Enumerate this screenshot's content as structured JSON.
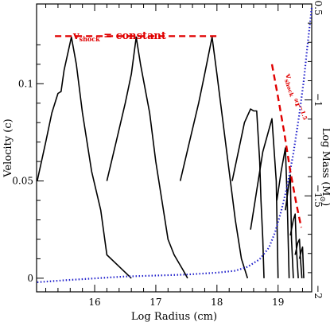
{
  "chart_data": {
    "type": "line",
    "xlabel": "Log Radius (cm)",
    "ylabel": "Velocity (c)",
    "y2label_main": "Log Mass (M",
    "y2label_sub": "⊙",
    "y2label_end": ")",
    "xlim": [
      15.05,
      19.55
    ],
    "ylim": [
      -0.007,
      0.141
    ],
    "y2lim": [
      -2.0,
      -0.5
    ],
    "xticks": [
      16,
      17,
      18,
      19
    ],
    "yticks": [
      0,
      0.05,
      0.1
    ],
    "y2ticks": [
      -2,
      -1.5,
      -1,
      -0.5
    ],
    "xtick_labels": [
      "16",
      "17",
      "18",
      "19"
    ],
    "ytick_labels": [
      "0",
      "0.05",
      "0.1"
    ],
    "y2tick_labels": [
      "−2",
      "−1.5",
      "−1",
      "−0.5"
    ],
    "series": [
      {
        "color": "#000000",
        "style": "solid",
        "axis": "left",
        "segments": [
          [
            [
              15.06,
              0.05
            ],
            [
              15.2,
              0.07
            ],
            [
              15.3,
              0.085
            ],
            [
              15.4,
              0.095
            ],
            [
              15.45,
              0.096
            ],
            [
              15.5,
              0.107
            ],
            [
              15.62,
              0.124
            ],
            [
              15.7,
              0.11
            ],
            [
              15.8,
              0.085
            ],
            [
              15.95,
              0.055
            ],
            [
              16.1,
              0.035
            ],
            [
              16.2,
              0.012
            ],
            [
              16.4,
              0.006
            ],
            [
              16.6,
              0.0
            ]
          ],
          [
            [
              16.2,
              0.05
            ],
            [
              16.35,
              0.07
            ],
            [
              16.5,
              0.09
            ],
            [
              16.6,
              0.105
            ],
            [
              16.68,
              0.124
            ],
            [
              16.75,
              0.11
            ],
            [
              16.9,
              0.085
            ],
            [
              17.0,
              0.06
            ],
            [
              17.1,
              0.04
            ],
            [
              17.2,
              0.02
            ],
            [
              17.3,
              0.012
            ],
            [
              17.45,
              0.004
            ],
            [
              17.52,
              0.0
            ]
          ],
          [
            [
              17.4,
              0.05
            ],
            [
              17.55,
              0.07
            ],
            [
              17.7,
              0.09
            ],
            [
              17.8,
              0.105
            ],
            [
              17.92,
              0.124
            ],
            [
              18.0,
              0.105
            ],
            [
              18.1,
              0.08
            ],
            [
              18.2,
              0.055
            ],
            [
              18.3,
              0.03
            ],
            [
              18.4,
              0.01
            ],
            [
              18.5,
              0.0
            ]
          ],
          [
            [
              18.25,
              0.05
            ],
            [
              18.35,
              0.065
            ],
            [
              18.45,
              0.08
            ],
            [
              18.55,
              0.087
            ],
            [
              18.6,
              0.086
            ],
            [
              18.65,
              0.086
            ],
            [
              18.7,
              0.06
            ],
            [
              18.72,
              0.04
            ],
            [
              18.75,
              0.02
            ],
            [
              18.77,
              0.0
            ]
          ],
          [
            [
              18.55,
              0.025
            ],
            [
              18.65,
              0.045
            ],
            [
              18.75,
              0.065
            ],
            [
              18.9,
              0.082
            ],
            [
              18.97,
              0.05
            ],
            [
              19.0,
              0.0
            ]
          ],
          [
            [
              18.98,
              0.04
            ],
            [
              19.05,
              0.055
            ],
            [
              19.12,
              0.067
            ],
            [
              19.15,
              0.04
            ],
            [
              19.18,
              0.0
            ]
          ],
          [
            [
              19.12,
              0.035
            ],
            [
              19.17,
              0.047
            ],
            [
              19.2,
              0.053
            ],
            [
              19.22,
              0.02
            ],
            [
              19.25,
              0.0
            ]
          ],
          [
            [
              19.2,
              0.022
            ],
            [
              19.25,
              0.03
            ],
            [
              19.28,
              0.033
            ],
            [
              19.3,
              0.015
            ],
            [
              19.33,
              0.0
            ]
          ],
          [
            [
              19.28,
              0.012
            ],
            [
              19.32,
              0.018
            ],
            [
              19.35,
              0.02
            ],
            [
              19.37,
              0.008
            ],
            [
              19.39,
              0.0
            ]
          ],
          [
            [
              19.35,
              0.01
            ],
            [
              19.38,
              0.014
            ],
            [
              19.4,
              0.016
            ],
            [
              19.42,
              0.0
            ]
          ]
        ]
      },
      {
        "color": "#2222cc",
        "style": "dotted",
        "axis": "right",
        "points": [
          [
            15.06,
            -1.95
          ],
          [
            15.5,
            -1.94
          ],
          [
            16.0,
            -1.93
          ],
          [
            16.5,
            -1.92
          ],
          [
            17.0,
            -1.915
          ],
          [
            17.5,
            -1.91
          ],
          [
            18.0,
            -1.9
          ],
          [
            18.3,
            -1.89
          ],
          [
            18.5,
            -1.87
          ],
          [
            18.7,
            -1.83
          ],
          [
            18.85,
            -1.77
          ],
          [
            18.95,
            -1.69
          ],
          [
            19.05,
            -1.58
          ],
          [
            19.15,
            -1.45
          ],
          [
            19.25,
            -1.28
          ],
          [
            19.35,
            -1.07
          ],
          [
            19.42,
            -0.9
          ],
          [
            19.48,
            -0.72
          ],
          [
            19.55,
            -0.52
          ]
        ]
      },
      {
        "color": "#e00000",
        "style": "dashed",
        "axis": "left",
        "name": "vshock = constant",
        "points": [
          [
            15.35,
            0.1245
          ],
          [
            18.05,
            0.1245
          ]
        ]
      },
      {
        "color": "#e00000",
        "style": "dashed",
        "axis": "left",
        "points": [
          [
            18.9,
            0.11
          ],
          [
            19.0,
            0.093
          ],
          [
            19.1,
            0.075
          ],
          [
            19.2,
            0.055
          ],
          [
            19.3,
            0.038
          ],
          [
            19.38,
            0.026
          ]
        ]
      }
    ],
    "annotations": {
      "const": {
        "v": "v",
        "sub": "shock",
        "rest": " = constant"
      },
      "power": {
        "v": "v",
        "sub": "shock",
        "prop": "∝r",
        "sup": "−1.5"
      }
    }
  }
}
